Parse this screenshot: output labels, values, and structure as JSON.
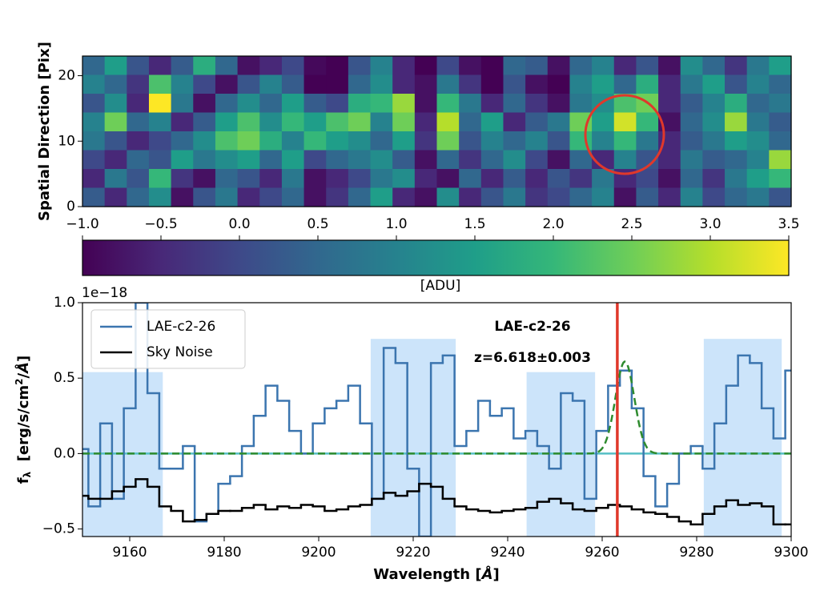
{
  "chart_data": [
    {
      "type": "heatmap",
      "ylabel": "Spatial Direction [Pix]",
      "ylim": [
        0,
        23
      ],
      "yticks": [
        0,
        10,
        20
      ],
      "colormap": "viridis",
      "clim": [
        -1,
        3.5
      ],
      "cticks": [
        {
          "value": -1,
          "label": "−1.0"
        },
        {
          "value": -0.5,
          "label": "−0.5"
        },
        {
          "value": 0,
          "label": "0.0"
        },
        0.5,
        {
          "value": 1,
          "label": "1.0"
        },
        1.5,
        {
          "value": 2,
          "label": "2.0"
        },
        2.5,
        {
          "value": 3,
          "label": "3.0"
        },
        3.5
      ],
      "clabel": "[ADU]",
      "z": [
        [
          0.5,
          1.5,
          0.2,
          -0.5,
          0.3,
          1.8,
          0.5,
          -0.8,
          -0.5,
          0.0,
          -0.9,
          -1,
          0.2,
          1.0,
          -0.5,
          -1,
          0.0,
          -0.8,
          -1,
          0.5,
          0.3,
          -0.8,
          0.5,
          1.0,
          -0.5,
          0.2,
          -0.8,
          1.2,
          0.5,
          -0.3,
          0.8,
          1.5
        ],
        [
          1.0,
          0.5,
          -0.3,
          2.2,
          1.0,
          0.0,
          -0.8,
          0.2,
          1.0,
          0.3,
          -1,
          -1,
          0.5,
          1.2,
          -0.5,
          -0.8,
          0.8,
          -0.3,
          -1,
          0.2,
          -0.8,
          -1,
          1.0,
          1.5,
          0.5,
          1.8,
          -0.5,
          0.8,
          1.5,
          0.2,
          1.0,
          0.5
        ],
        [
          0.2,
          1.2,
          -0.5,
          3.5,
          0.8,
          -0.8,
          0.5,
          1.2,
          0.5,
          1.5,
          0.3,
          0.0,
          1.8,
          2.0,
          2.8,
          -0.8,
          2.0,
          0.8,
          -0.5,
          0.5,
          -0.3,
          -0.8,
          0.8,
          1.2,
          2.2,
          2.5,
          -0.5,
          0.3,
          1.0,
          1.8,
          0.5,
          0.8
        ],
        [
          1.0,
          2.5,
          0.5,
          1.0,
          -0.5,
          0.3,
          1.5,
          2.2,
          1.2,
          2.0,
          1.5,
          2.2,
          2.5,
          1.0,
          2.5,
          -0.5,
          3.0,
          0.5,
          1.5,
          -0.5,
          0.3,
          0.8,
          2.5,
          1.5,
          3.2,
          2.0,
          -0.8,
          0.5,
          1.2,
          2.8,
          0.8,
          0.3
        ],
        [
          0.8,
          0.2,
          -0.5,
          0.0,
          0.5,
          1.2,
          2.2,
          2.5,
          1.8,
          1.0,
          2.0,
          1.5,
          1.2,
          0.5,
          1.5,
          -0.3,
          2.5,
          0.2,
          1.0,
          0.5,
          1.0,
          0.2,
          2.0,
          1.0,
          2.0,
          0.8,
          -0.5,
          0.3,
          0.8,
          1.5,
          1.2,
          0.5
        ],
        [
          0.0,
          -0.5,
          0.5,
          0.2,
          1.5,
          0.8,
          1.2,
          1.5,
          0.5,
          1.5,
          0.0,
          0.5,
          0.8,
          1.2,
          0.3,
          -0.8,
          0.5,
          -0.3,
          0.5,
          1.2,
          0.0,
          -0.8,
          0.5,
          -0.5,
          1.0,
          0.2,
          -0.5,
          0.8,
          0.3,
          0.5,
          1.0,
          2.8
        ],
        [
          -0.5,
          0.8,
          0.2,
          2.0,
          -0.3,
          -0.8,
          0.5,
          0.2,
          -0.5,
          0.8,
          -0.8,
          -0.5,
          0.0,
          0.8,
          1.2,
          -0.5,
          -0.8,
          0.5,
          -0.5,
          0.3,
          -0.5,
          0.2,
          -0.3,
          0.8,
          -0.5,
          0.0,
          -0.8,
          0.5,
          -0.3,
          0.8,
          1.5,
          2.0
        ],
        [
          0.3,
          -0.5,
          0.5,
          1.2,
          -0.8,
          0.2,
          0.8,
          -0.5,
          0.0,
          0.5,
          -0.8,
          -0.3,
          0.5,
          1.5,
          -0.5,
          -0.8,
          1.2,
          -0.5,
          0.2,
          0.8,
          -0.3,
          0.0,
          0.5,
          1.0,
          -0.8,
          0.3,
          -0.5,
          1.0,
          0.0,
          0.5,
          0.8,
          0.2
        ]
      ]
    },
    {
      "type": "line",
      "xlabel": {
        "text": "Wavelength [",
        "unit": "Å",
        "end": "]"
      },
      "ylabel": {
        "main": "f",
        "sub": "λ",
        "unit": "  [erg/s/cm",
        "sup": "2",
        "slash": "/",
        "unit_sym": "Å",
        "end": "]"
      },
      "offset_text": "1e−18",
      "xlim": [
        9150,
        9300
      ],
      "xticks": [
        9160,
        9180,
        9200,
        9220,
        9240,
        9260,
        9280,
        9300
      ],
      "ylim": [
        -0.55,
        1.0
      ],
      "yticks": [
        {
          "value": -0.5,
          "label": "−0.5"
        },
        {
          "value": 0,
          "label": "0.0"
        },
        0.5,
        {
          "value": 1,
          "label": "1.0"
        }
      ],
      "legend": "upper left",
      "annotations": [
        "LAE-c2-26",
        "z=6.618±0.003"
      ],
      "x": [
        9150,
        9152.5,
        9155,
        9157.5,
        9160,
        9162.5,
        9165,
        9167.5,
        9170,
        9172.5,
        9175,
        9177.5,
        9180,
        9182.5,
        9185,
        9187.5,
        9190,
        9192.5,
        9195,
        9197.5,
        9200,
        9202.5,
        9205,
        9207.5,
        9210,
        9212.5,
        9215,
        9217.5,
        9220,
        9222.5,
        9225,
        9227.5,
        9230,
        9232.5,
        9235,
        9237.5,
        9240,
        9242.5,
        9245,
        9247.5,
        9250,
        9252.5,
        9255,
        9257.5,
        9260,
        9262.5,
        9265,
        9267.5,
        9270,
        9272.5,
        9275,
        9277.5,
        9280,
        9282.5,
        9285,
        9287.5,
        9290,
        9292.5,
        9295,
        9297.5,
        9300
      ],
      "series": [
        {
          "name": "LAE-c2-26",
          "color": "#3b75af",
          "values": [
            0.03,
            -0.35,
            0.2,
            -0.3,
            0.3,
            1.0,
            0.4,
            -0.1,
            -0.1,
            0.05,
            -0.45,
            -0.4,
            -0.2,
            -0.15,
            0.05,
            0.25,
            0.45,
            0.35,
            0.15,
            0.0,
            0.2,
            0.3,
            0.35,
            0.45,
            0.2,
            -0.3,
            0.7,
            0.6,
            -0.1,
            -0.55,
            0.6,
            0.65,
            0.05,
            0.15,
            0.35,
            0.25,
            0.3,
            0.1,
            0.15,
            0.05,
            -0.1,
            0.4,
            0.35,
            -0.3,
            0.15,
            0.45,
            0.55,
            0.3,
            -0.15,
            -0.35,
            -0.2,
            0.0,
            0.05,
            -0.1,
            0.2,
            0.45,
            0.65,
            0.6,
            0.3,
            0.1,
            0.55
          ]
        },
        {
          "name": "Sky Noise",
          "color": "#000000",
          "values": [
            -0.28,
            -0.3,
            -0.3,
            -0.25,
            -0.22,
            -0.17,
            -0.22,
            -0.35,
            -0.38,
            -0.45,
            -0.44,
            -0.4,
            -0.38,
            -0.38,
            -0.36,
            -0.34,
            -0.37,
            -0.35,
            -0.36,
            -0.34,
            -0.35,
            -0.38,
            -0.37,
            -0.35,
            -0.34,
            -0.3,
            -0.26,
            -0.28,
            -0.25,
            -0.2,
            -0.22,
            -0.3,
            -0.35,
            -0.37,
            -0.38,
            -0.39,
            -0.38,
            -0.37,
            -0.36,
            -0.32,
            -0.3,
            -0.33,
            -0.37,
            -0.38,
            -0.36,
            -0.34,
            -0.35,
            -0.37,
            -0.39,
            -0.4,
            -0.42,
            -0.45,
            -0.47,
            -0.4,
            -0.35,
            -0.31,
            -0.34,
            -0.33,
            -0.35,
            -0.47,
            -0.47
          ]
        }
      ],
      "fit": {
        "amplitude": 0.61,
        "center": 9264.8,
        "sigma": 2.0,
        "color": "#2e8b2e"
      },
      "zero_line": {
        "value": 0,
        "color": "#56bfc5"
      },
      "vline": {
        "value": 9263.2,
        "color": "#e0382b"
      },
      "spans": [
        {
          "x": [
            9150,
            9167
          ],
          "top": 0.54
        },
        {
          "x": [
            9211,
            9229
          ],
          "top": 0.76
        },
        {
          "x": [
            9244,
            9258.5
          ],
          "top": 0.54
        },
        {
          "x": [
            9281.5,
            9298
          ],
          "top": 0.76
        }
      ],
      "span_color": "#cce4fa"
    }
  ]
}
